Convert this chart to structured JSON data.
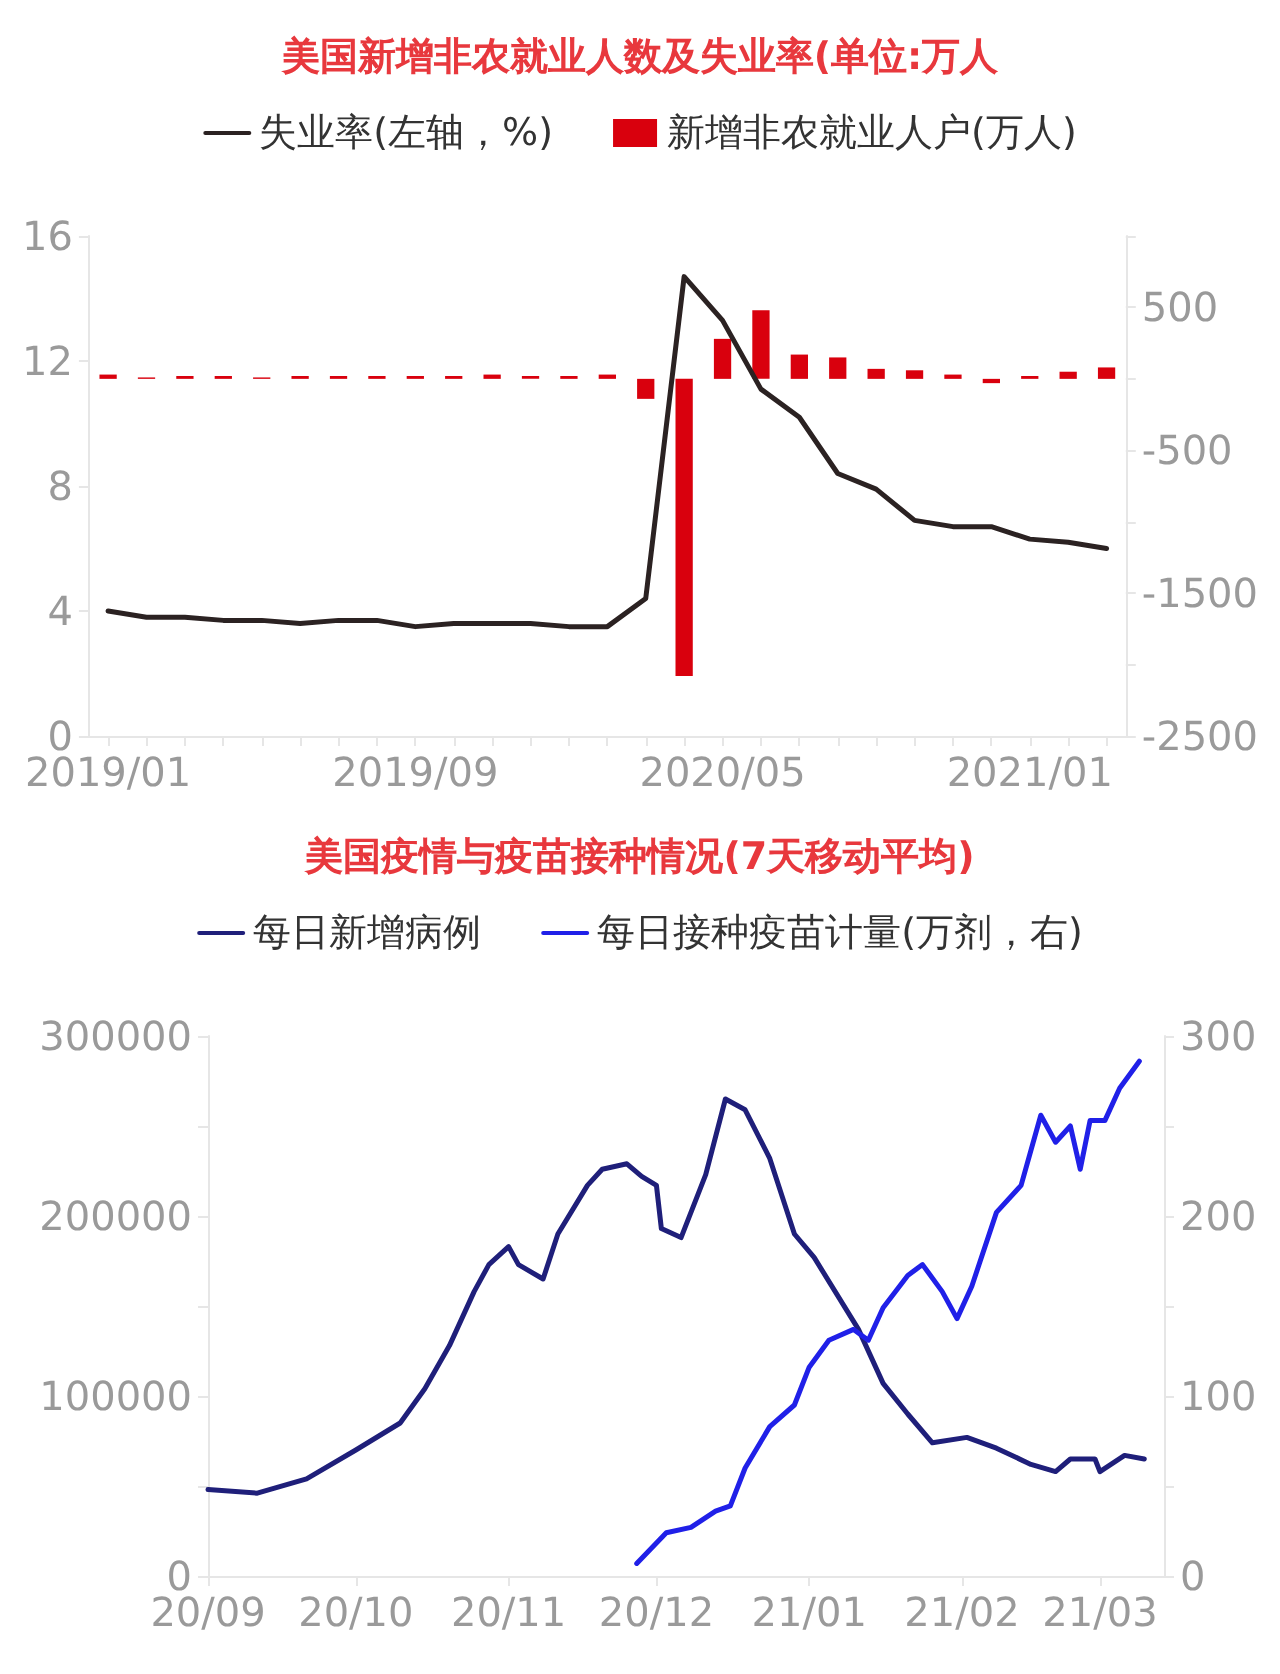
{
  "chart_data": [
    {
      "type": "bar",
      "title": "美国新增非农就业人数及失业率(单位:万人",
      "legend": "top",
      "categories": [
        "2019/01",
        null,
        null,
        null,
        null,
        null,
        null,
        null,
        "2019/09",
        null,
        null,
        null,
        null,
        null,
        null,
        null,
        "2020/05",
        null,
        null,
        null,
        null,
        null,
        null,
        null,
        "2021/01",
        null,
        null
      ],
      "series": [
        {
          "name": "失业率(左轴，%)",
          "type": "line",
          "color": "#2b2222",
          "marker": "none",
          "values": [
            4.0,
            3.8,
            3.8,
            3.7,
            3.7,
            3.6,
            3.7,
            3.7,
            3.5,
            3.6,
            3.6,
            3.6,
            3.5,
            3.5,
            4.4,
            14.7,
            13.3,
            11.1,
            10.2,
            8.4,
            7.9,
            6.9,
            6.7,
            6.7,
            6.3,
            6.2,
            6.0
          ]
        },
        {
          "name": "新增非农就业人户(万人)",
          "axis": "y2",
          "color": "#d9000d",
          "values": [
            30,
            10,
            20,
            20,
            10,
            20,
            20,
            20,
            20,
            20,
            30,
            20,
            20,
            30,
            -140,
            -2080,
            280,
            480,
            170,
            150,
            70,
            60,
            30,
            -30,
            20,
            50,
            80
          ]
        }
      ],
      "ylim": [
        0,
        16
      ],
      "yticks": [
        0,
        4,
        8,
        12,
        16
      ],
      "y2lim": [
        -2500,
        1000
      ],
      "y2ticks": [
        {
          "value": 1000,
          "label": null
        },
        500,
        {
          "value": 0,
          "label": null
        },
        -500,
        {
          "value": -1000,
          "label": null
        },
        -1500,
        {
          "value": -2000,
          "label": null
        },
        -2500
      ],
      "grid": false
    },
    {
      "type": "line",
      "title": "美国疫情与疫苗接种情况(7天移动平均)",
      "legend": "top",
      "series": [
        {
          "name": "每日新增病例",
          "color": "#1f1f7a",
          "x": [
            "2020-09-01",
            "2020-09-11",
            "2020-09-21",
            "2020-10-01",
            "2020-10-10",
            "2020-10-15",
            "2020-10-20",
            "2020-10-25",
            "2020-10-28",
            "2020-11-01",
            "2020-11-03",
            "2020-11-08",
            "2020-11-11",
            "2020-11-17",
            "2020-11-20",
            "2020-11-25",
            "2020-11-28",
            "2020-12-01",
            "2020-12-02",
            "2020-12-06",
            "2020-12-11",
            "2020-12-15",
            "2020-12-19",
            "2020-12-24",
            "2020-12-29",
            "2021-01-02",
            "2021-01-11",
            "2021-01-16",
            "2021-01-21",
            "2021-01-26",
            "2021-02-02",
            "2021-02-08",
            "2021-02-15",
            "2021-02-20",
            "2021-02-23",
            "2021-02-28",
            "2021-03-01",
            "2021-03-06",
            "2021-03-10"
          ],
          "values": [
            48000,
            46000,
            54000,
            70000,
            85000,
            104000,
            128000,
            158000,
            173000,
            183000,
            173000,
            165000,
            190000,
            217000,
            226000,
            229000,
            222000,
            217000,
            193000,
            188000,
            223000,
            265000,
            259000,
            232000,
            190000,
            177000,
            137000,
            107000,
            90000,
            74000,
            77000,
            71000,
            62000,
            58000,
            65000,
            65000,
            58000,
            67000,
            65000
          ]
        },
        {
          "name": "每日接种疫苗计量(万剂，右)",
          "color": "#2020e8",
          "axis": "y2",
          "x": [
            "2020-11-27",
            "2020-12-03",
            "2020-12-08",
            "2020-12-13",
            "2020-12-16",
            "2020-12-19",
            "2020-12-24",
            "2020-12-29",
            "2021-01-01",
            "2021-01-05",
            "2021-01-10",
            "2021-01-13",
            "2021-01-16",
            "2021-01-21",
            "2021-01-24",
            "2021-01-28",
            "2021-01-31",
            "2021-02-03",
            "2021-02-08",
            "2021-02-13",
            "2021-02-17",
            "2021-02-20",
            "2021-02-23",
            "2021-02-25",
            "2021-02-27",
            "2021-03-02",
            "2021-03-05",
            "2021-03-09"
          ],
          "values": [
            7,
            24,
            27,
            36,
            39,
            60,
            83,
            95,
            116,
            131,
            137,
            131,
            149,
            167,
            173,
            158,
            143,
            161,
            202,
            217,
            256,
            241,
            250,
            226,
            253,
            253,
            271,
            286
          ]
        }
      ],
      "xlim": [
        "2020-09-01",
        "2021-03-14"
      ],
      "xticks": [
        {
          "value": "2020-09-01",
          "label": "20/09"
        },
        {
          "value": "2020-10-01",
          "label": "20/10"
        },
        {
          "value": "2020-11-01",
          "label": "20/11"
        },
        {
          "value": "2020-12-01",
          "label": "20/12"
        },
        {
          "value": "2021-01-01",
          "label": "21/01"
        },
        {
          "value": "2021-02-01",
          "label": "21/02"
        },
        {
          "value": "2021-03-01",
          "label": "21/03"
        }
      ],
      "ylim": [
        0,
        300000
      ],
      "yticks": [
        0,
        {
          "value": 50000,
          "label": null
        },
        100000,
        {
          "value": 150000,
          "label": null
        },
        200000,
        {
          "value": 250000,
          "label": null
        },
        300000
      ],
      "y2lim": [
        0,
        300
      ],
      "y2ticks": [
        0,
        {
          "value": 50,
          "label": null
        },
        100,
        {
          "value": 150,
          "label": null
        },
        200,
        {
          "value": 250,
          "label": null
        },
        300
      ],
      "marker": "none",
      "grid": false
    }
  ]
}
